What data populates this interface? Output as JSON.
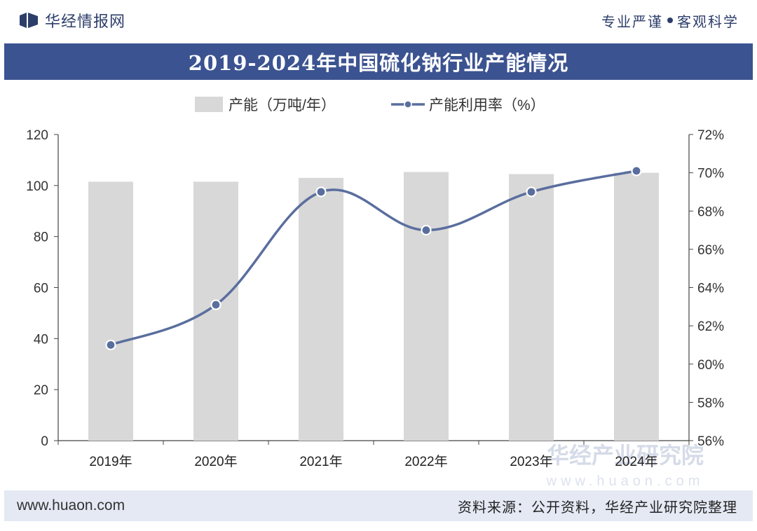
{
  "header": {
    "brand": "华经情报网",
    "slogan_left": "专业严谨",
    "slogan_right": "客观科学"
  },
  "title": "2019-2024年中国硫化钠行业产能情况",
  "chart_data": {
    "type": "bar+line",
    "title": "2019-2024年中国硫化钠行业产能情况",
    "categories": [
      "2019年",
      "2020年",
      "2021年",
      "2022年",
      "2023年",
      "2024年"
    ],
    "series": [
      {
        "name": "产能（万吨/年）",
        "type": "bar",
        "axis": "left",
        "values": [
          101.5,
          101.5,
          103,
          105.3,
          104.5,
          105
        ],
        "color": "#d8d8d8"
      },
      {
        "name": "产能利用率（%）",
        "type": "line",
        "axis": "right",
        "values": [
          61,
          63.1,
          69,
          67,
          69,
          70.1
        ],
        "color": "#5a6e9e"
      }
    ],
    "y_left": {
      "min": 0,
      "max": 120,
      "ticks": [
        0,
        20,
        40,
        60,
        80,
        100,
        120
      ]
    },
    "y_right": {
      "min": 56,
      "max": 72,
      "ticks": [
        "56%",
        "58%",
        "60%",
        "62%",
        "64%",
        "66%",
        "68%",
        "70%",
        "72%"
      ]
    },
    "legend_position": "top",
    "watermark": "华经产业研究院",
    "watermark_url": "www.huaon.com"
  },
  "footer": {
    "website": "www.huaon.com",
    "source": "资料来源：公开资料，华经产业研究院整理"
  }
}
